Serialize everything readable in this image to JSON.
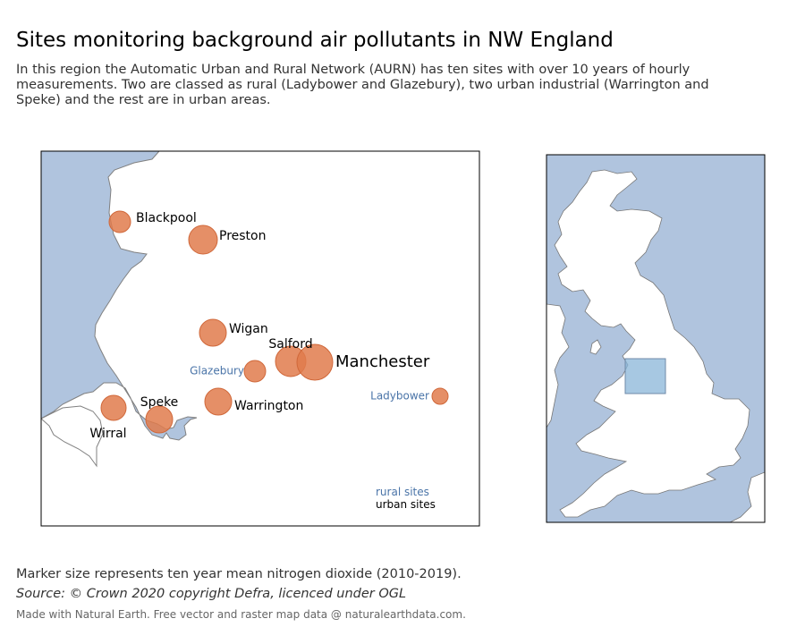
{
  "title": "Sites monitoring background air pollutants in NW England",
  "subtitle": "In this region the Automatic Urban and Rural Network (AURN) has ten sites with over 10 years of hourly measurements. Two are classed as rural (Ladybower and Glazebury), two urban industrial (Warrington and Speke) and the rest are in urban areas.",
  "colors": {
    "sea": "#b0c4de",
    "land": "#ffffff",
    "coast": "#808080",
    "marker": "#e07b4c",
    "rural_label": "#4a74a8",
    "urban_label": "#000000",
    "highlight": "#8ab6d8"
  },
  "sites": [
    {
      "name": "Blackpool",
      "type": "urban"
    },
    {
      "name": "Preston",
      "type": "urban"
    },
    {
      "name": "Wigan",
      "type": "urban"
    },
    {
      "name": "Salford",
      "type": "urban"
    },
    {
      "name": "Manchester",
      "type": "urban"
    },
    {
      "name": "Glazebury",
      "type": "rural"
    },
    {
      "name": "Ladybower",
      "type": "rural"
    },
    {
      "name": "Speke",
      "type": "urban industrial"
    },
    {
      "name": "Warrington",
      "type": "urban industrial"
    },
    {
      "name": "Wirral",
      "type": "urban"
    }
  ],
  "legend": {
    "rural": "rural sites",
    "urban": "urban sites"
  },
  "footnote": "Marker size represents ten year mean nitrogen dioxide (2010-2019).",
  "source": "Source: © Crown 2020 copyright Defra,  licenced under OGL",
  "credit": "Made with Natural Earth. Free vector and raster map data @ naturalearthdata.com."
}
